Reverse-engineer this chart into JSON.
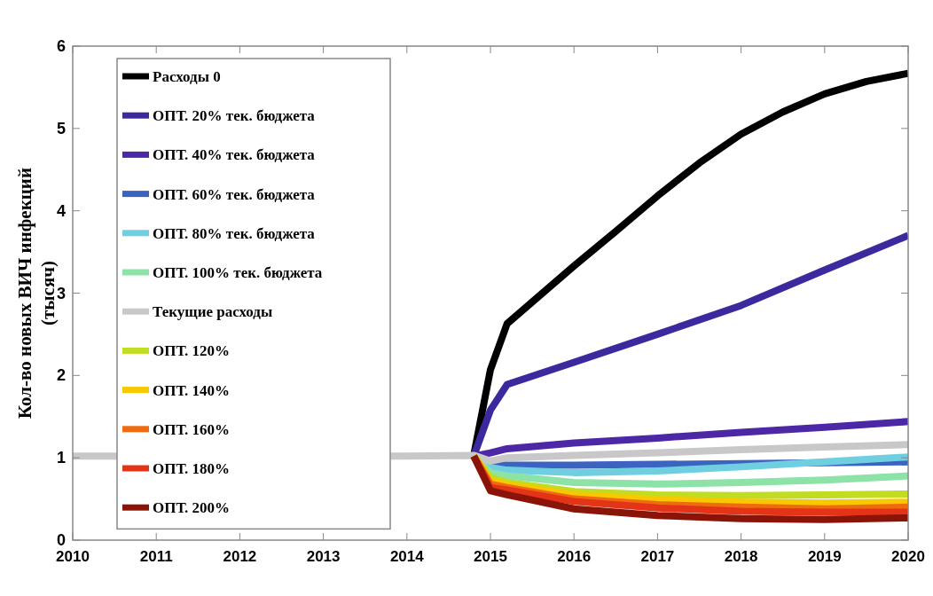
{
  "chart_data": {
    "type": "line",
    "ylabel": "Кол-во новых ВИЧ инфекций\n(тысяч)",
    "xlim": [
      2010,
      2020
    ],
    "xticks": [
      2010,
      2011,
      2012,
      2013,
      2014,
      2015,
      2016,
      2017,
      2018,
      2019,
      2020
    ],
    "ylim": [
      0,
      6
    ],
    "yticks": [
      0,
      1,
      2,
      3,
      4,
      5,
      6
    ],
    "grid": false,
    "legend": "top left",
    "marker": "none",
    "line_style": "solid",
    "x": [
      2014.8,
      2015,
      2015.2,
      2016,
      2017,
      2018,
      2019,
      2020
    ],
    "series": [
      {
        "name": "Расходы 0",
        "color": "#000000",
        "values": [
          1.03,
          2.07,
          2.63,
          3.33,
          3.75,
          4.18,
          4.58,
          4.93,
          5.2,
          5.42,
          5.57,
          5.67
        ],
        "x": [
          2014.8,
          2015,
          2015.2,
          2016,
          2016.5,
          2017,
          2017.5,
          2018,
          2018.5,
          2019,
          2019.5,
          2020
        ]
      },
      {
        "name": "ОПТ. 20% тек. бюджета",
        "color": "#3a2a9e",
        "values": [
          1.02,
          1.58,
          1.89,
          2.16,
          2.5,
          2.85,
          3.28,
          3.7
        ]
      },
      {
        "name": "ОПТ. 40% тек. бюджета",
        "color": "#4d28a6",
        "values": [
          1.02,
          1.06,
          1.11,
          1.18,
          1.24,
          1.31,
          1.37,
          1.44
        ]
      },
      {
        "name": "ОПТ. 60% тек. бюджета",
        "color": "#3a64c0",
        "values": [
          1.02,
          0.93,
          0.91,
          0.91,
          0.92,
          0.93,
          0.94,
          0.95
        ]
      },
      {
        "name": "ОПТ. 80% тек. бюджета",
        "color": "#6fcfe0",
        "values": [
          1.02,
          0.88,
          0.85,
          0.82,
          0.84,
          0.89,
          0.95,
          1.01
        ]
      },
      {
        "name": "ОПТ. 100% тек. бюджета",
        "color": "#8de2a8",
        "values": [
          1.02,
          0.82,
          0.78,
          0.7,
          0.68,
          0.7,
          0.73,
          0.78
        ]
      },
      {
        "name": "Текущие расходы",
        "color": "#c8c8c8",
        "x": [
          2010,
          2014,
          2014.8,
          2015,
          2015.2,
          2016,
          2017,
          2018,
          2019,
          2020
        ],
        "values": [
          1.02,
          1.02,
          1.03,
          0.96,
          1.0,
          1.03,
          1.06,
          1.1,
          1.13,
          1.16
        ]
      },
      {
        "name": "ОПТ. 120%",
        "color": "#c2dc22",
        "values": [
          1.02,
          0.76,
          0.7,
          0.59,
          0.55,
          0.54,
          0.55,
          0.56
        ]
      },
      {
        "name": "ОПТ. 140%",
        "color": "#f8c800",
        "values": [
          1.02,
          0.72,
          0.67,
          0.55,
          0.49,
          0.46,
          0.45,
          0.46
        ]
      },
      {
        "name": "ОПТ. 160%",
        "color": "#f06a10",
        "values": [
          1.02,
          0.68,
          0.64,
          0.5,
          0.43,
          0.4,
          0.38,
          0.4
        ]
      },
      {
        "name": "ОПТ. 180%",
        "color": "#e43418",
        "values": [
          1.02,
          0.64,
          0.61,
          0.47,
          0.39,
          0.35,
          0.34,
          0.34
        ]
      },
      {
        "name": "ОПТ. 200%",
        "color": "#8b1408",
        "values": [
          1.02,
          0.6,
          0.55,
          0.38,
          0.3,
          0.26,
          0.25,
          0.27
        ]
      }
    ]
  }
}
